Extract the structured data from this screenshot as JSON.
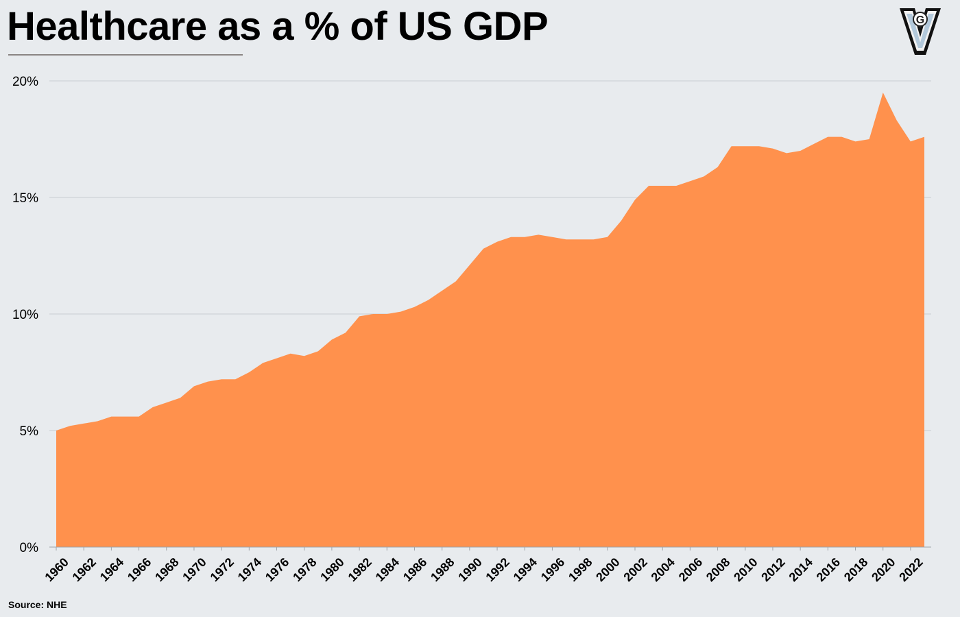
{
  "title": "Healthcare as a % of US GDP",
  "source": "Source: NHE",
  "logo": {
    "letter_outer": "V",
    "letter_inner": "G"
  },
  "colors": {
    "area": "#ff914d",
    "background": "#e8ebee",
    "grid": "#c8cdd2",
    "axis": "#9ea3a8"
  },
  "chart_data": {
    "type": "area",
    "x": [
      1960,
      1961,
      1962,
      1963,
      1964,
      1965,
      1966,
      1967,
      1968,
      1969,
      1970,
      1971,
      1972,
      1973,
      1974,
      1975,
      1976,
      1977,
      1978,
      1979,
      1980,
      1981,
      1982,
      1983,
      1984,
      1985,
      1986,
      1987,
      1988,
      1989,
      1990,
      1991,
      1992,
      1993,
      1994,
      1995,
      1996,
      1997,
      1998,
      1999,
      2000,
      2001,
      2002,
      2003,
      2004,
      2005,
      2006,
      2007,
      2008,
      2009,
      2010,
      2011,
      2012,
      2013,
      2014,
      2015,
      2016,
      2017,
      2018,
      2019,
      2020,
      2021,
      2022,
      2023
    ],
    "values": [
      5.0,
      5.2,
      5.3,
      5.4,
      5.6,
      5.6,
      5.6,
      6.0,
      6.2,
      6.4,
      6.9,
      7.1,
      7.2,
      7.2,
      7.5,
      7.9,
      8.1,
      8.3,
      8.2,
      8.4,
      8.9,
      9.2,
      9.9,
      10.0,
      10.0,
      10.1,
      10.3,
      10.6,
      11.0,
      11.4,
      12.1,
      12.8,
      13.1,
      13.3,
      13.3,
      13.4,
      13.3,
      13.2,
      13.2,
      13.2,
      13.3,
      14.0,
      14.9,
      15.5,
      15.5,
      15.5,
      15.7,
      15.9,
      16.3,
      17.2,
      17.2,
      17.2,
      17.1,
      16.9,
      17.0,
      17.3,
      17.6,
      17.6,
      17.4,
      17.5,
      19.5,
      18.3,
      17.4,
      17.6
    ],
    "x_tick_labels": [
      "1960",
      "1962",
      "1964",
      "1966",
      "1968",
      "1970",
      "1972",
      "1974",
      "1976",
      "1978",
      "1980",
      "1982",
      "1984",
      "1986",
      "1988",
      "1990",
      "1992",
      "1994",
      "1996",
      "1998",
      "2000",
      "2002",
      "2004",
      "2006",
      "2008",
      "2010",
      "2012",
      "2014",
      "2016",
      "2018",
      "2020",
      "2022"
    ],
    "y_ticks": [
      0,
      5,
      10,
      15,
      20
    ],
    "y_tick_labels": [
      "0%",
      "5%",
      "10%",
      "15%",
      "20%"
    ],
    "ylim": [
      0,
      20
    ],
    "xlim": [
      1960,
      2023
    ],
    "grid": "horizontal",
    "legend": "none"
  }
}
